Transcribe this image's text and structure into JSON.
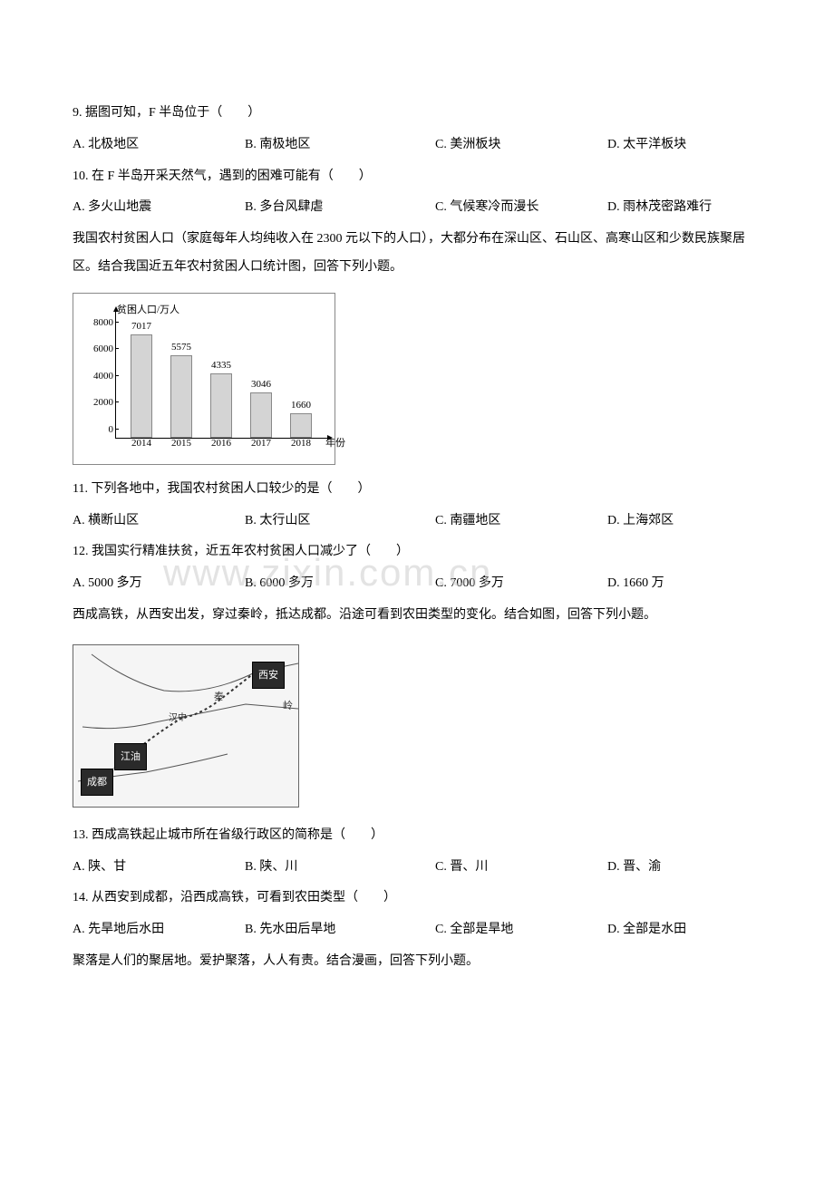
{
  "q9": {
    "text": "9. 据图可知，F 半岛位于（　　）",
    "options": {
      "a": "A. 北极地区",
      "b": "B. 南极地区",
      "c": "C. 美洲板块",
      "d": "D. 太平洋板块"
    }
  },
  "q10": {
    "text": "10. 在 F 半岛开采天然气，遇到的困难可能有（　　）",
    "options": {
      "a": "A. 多火山地震",
      "b": "B. 多台风肆虐",
      "c": "C. 气候寒冷而漫长",
      "d": "D. 雨林茂密路难行"
    }
  },
  "intro1": "我国农村贫困人口（家庭每年人均纯收入在 2300 元以下的人口），大都分布在深山区、石山区、高寒山区和少数民族聚居区。结合我国近五年农村贫困人口统计图，回答下列小题。",
  "chart": {
    "type": "bar",
    "y_axis_label": "贫困人口/万人",
    "x_axis_label": "年份",
    "y_ticks": [
      "8000",
      "6000",
      "4000",
      "2000",
      "0"
    ],
    "categories": [
      "2014",
      "2015",
      "2016",
      "2017",
      "2018"
    ],
    "values": [
      7017,
      5575,
      4335,
      3046,
      1660
    ],
    "value_labels": [
      "7017",
      "5575",
      "4335",
      "3046",
      "1660"
    ],
    "y_max": 8000,
    "bar_color": "#d4d4d4",
    "bar_border": "#888888",
    "background_color": "#ffffff",
    "chart_border": "#888888"
  },
  "q11": {
    "text": "11. 下列各地中，我国农村贫困人口较少的是（　　）",
    "options": {
      "a": "A. 横断山区",
      "b": "B. 太行山区",
      "c": "C. 南疆地区",
      "d": "D. 上海郊区"
    }
  },
  "q12": {
    "text": "12. 我国实行精准扶贫，近五年农村贫困人口减少了（　　）",
    "options": {
      "a": "A. 5000 多万",
      "b": "B. 6000 多万",
      "c": "C. 7000 多万",
      "d": "D. 1660 万"
    }
  },
  "intro2": "西成高铁，从西安出发，穿过秦岭，抵达成都。沿途可看到农田类型的变化。结合如图，回答下列小题。",
  "watermark": "www.zixin.com.cn",
  "map": {
    "labels": {
      "xian": "西安",
      "hanzhong": "汉中",
      "jiangyou": "江油",
      "chengdu": "成都",
      "qinling": "秦",
      "ling": "岭"
    },
    "rail_color": "#333333",
    "river_color": "#555555",
    "border_color": "#666666",
    "background": "#f5f5f5"
  },
  "q13": {
    "text": "13. 西成高铁起止城市所在省级行政区的简称是（　　）",
    "options": {
      "a": "A. 陕、甘",
      "b": "B. 陕、川",
      "c": "C. 晋、川",
      "d": "D. 晋、渝"
    }
  },
  "q14": {
    "text": "14. 从西安到成都，沿西成高铁，可看到农田类型（　　）",
    "options": {
      "a": "A. 先旱地后水田",
      "b": "B. 先水田后旱地",
      "c": "C. 全部是旱地",
      "d": "D. 全部是水田"
    }
  },
  "intro3": "聚落是人们的聚居地。爱护聚落，人人有责。结合漫画，回答下列小题。"
}
